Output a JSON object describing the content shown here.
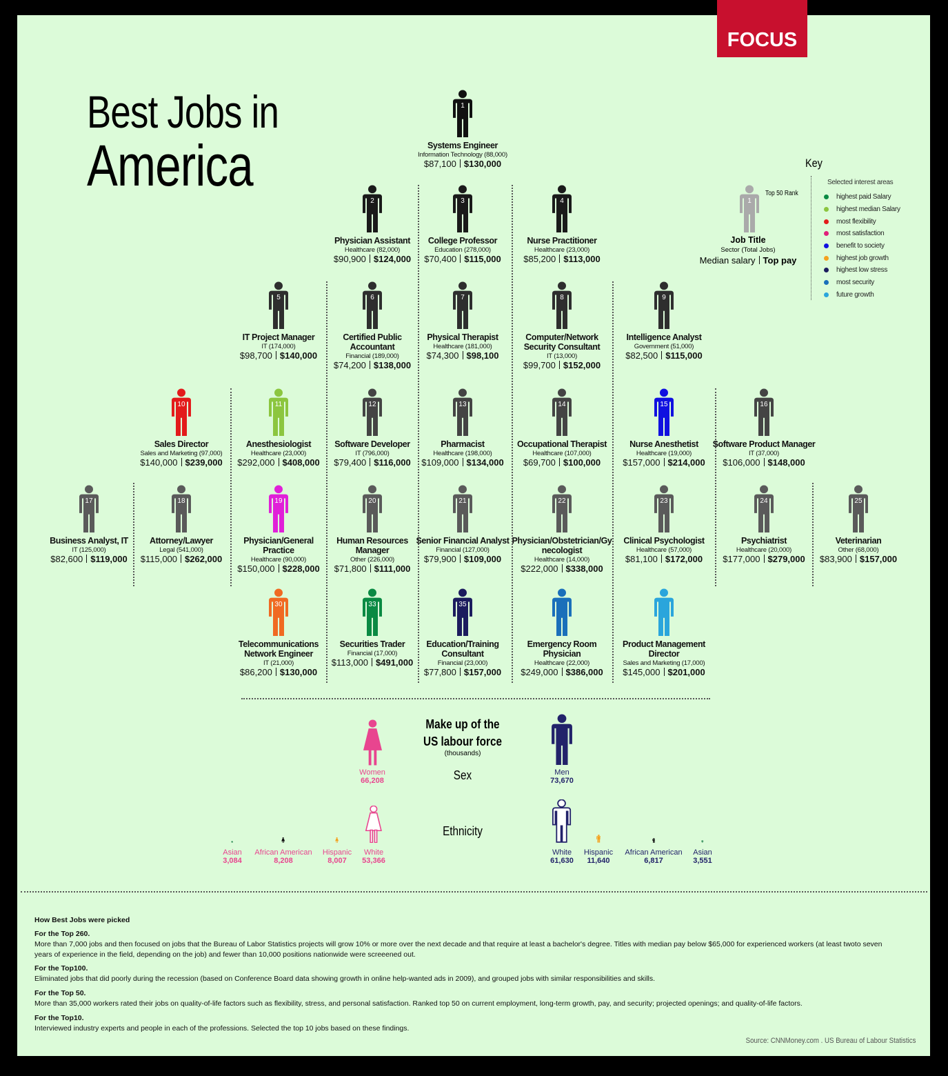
{
  "header": {
    "logo": "FOCUS",
    "title_lines": [
      "Best Jobs in",
      "America"
    ]
  },
  "key": {
    "title": "Key",
    "sample_rank": "1",
    "rank_note": "Top 50 Rank",
    "job_title": "Job Title",
    "sector": "Sector (Total Jobs)",
    "median": "Median salary",
    "top_pay": "Top pay",
    "areas_title": "Selected interest areas",
    "areas": [
      {
        "label": "highest paid Salary",
        "color": "#0a8a43"
      },
      {
        "label": "highest median Salary",
        "color": "#8cc63f"
      },
      {
        "label": "most flexibility",
        "color": "#e31b1b"
      },
      {
        "label": "most satisfaction",
        "color": "#e0207a"
      },
      {
        "label": "benefit to society",
        "color": "#1010e0"
      },
      {
        "label": "highest job growth",
        "color": "#f4a11f"
      },
      {
        "label": "highest low stress",
        "color": "#1c1c5e"
      },
      {
        "label": "most security",
        "color": "#1a6fba"
      },
      {
        "label": "future growth",
        "color": "#2aa5dc"
      }
    ]
  },
  "jobs": [
    {
      "rank": "1",
      "title": "Systems Engineer",
      "sector": "Information Technology (88,000)",
      "median": "$87,100",
      "top_pay": "$130,000",
      "color": "#111111"
    },
    {
      "rank": "2",
      "title": "Physician Assistant",
      "sector": "Healthcare (82,000)",
      "median": "$90,900",
      "top_pay": "$124,000",
      "color": "#1a1a1a"
    },
    {
      "rank": "3",
      "title": "College Professor",
      "sector": "Education (278,000)",
      "median": "$70,400",
      "top_pay": "$115,000",
      "color": "#1a1a1a"
    },
    {
      "rank": "4",
      "title": "Nurse Practitioner",
      "sector": "Healthcare (23,000)",
      "median": "$85,200",
      "top_pay": "$113,000",
      "color": "#1a1a1a"
    },
    {
      "rank": "5",
      "title": "IT Project Manager",
      "sector": "IT (174,000)",
      "median": "$98,700",
      "top_pay": "$140,000",
      "color": "#2e2e2e"
    },
    {
      "rank": "6",
      "title": "Certified Public Accountant",
      "sector": "Financial (189,000)",
      "median": "$74,200",
      "top_pay": "$138,000",
      "color": "#2e2e2e"
    },
    {
      "rank": "7",
      "title": "Physical Therapist",
      "sector": "Healthcare (181,000)",
      "median": "$74,300",
      "top_pay": "$98,100",
      "color": "#2e2e2e"
    },
    {
      "rank": "8",
      "title": "Computer/Network Security Consultant",
      "sector": "IT (13,000)",
      "median": "$99,700",
      "top_pay": "$152,000",
      "color": "#2e2e2e"
    },
    {
      "rank": "9",
      "title": "Intelligence Analyst",
      "sector": "Government (51,000)",
      "median": "$82,500",
      "top_pay": "$115,000",
      "color": "#2e2e2e"
    },
    {
      "rank": "10",
      "title": "Sales Director",
      "sector": "Sales and Marketing (97,000)",
      "median": "$140,000",
      "top_pay": "$239,000",
      "color": "#e31b1b"
    },
    {
      "rank": "11",
      "title": "Anesthesiologist",
      "sector": "Healthcare (23,000)",
      "median": "$292,000",
      "top_pay": "$408,000",
      "color": "#8cc63f"
    },
    {
      "rank": "12",
      "title": "Software Developer",
      "sector": "IT (796,000)",
      "median": "$79,400",
      "top_pay": "$116,000",
      "color": "#444444"
    },
    {
      "rank": "13",
      "title": "Pharmacist",
      "sector": "Healthcare (198,000)",
      "median": "$109,000",
      "top_pay": "$134,000",
      "color": "#444444"
    },
    {
      "rank": "14",
      "title": "Occupational Therapist",
      "sector": "Healthcare (107,000)",
      "median": "$69,700",
      "top_pay": "$100,000",
      "color": "#444444"
    },
    {
      "rank": "15",
      "title": "Nurse Anesthetist",
      "sector": "Healthcare (19,000)",
      "median": "$157,000",
      "top_pay": "$214,000",
      "color": "#1010e0"
    },
    {
      "rank": "16",
      "title": "Software Product Manager",
      "sector": "IT (37,000)",
      "median": "$106,000",
      "top_pay": "$148,000",
      "color": "#444444"
    },
    {
      "rank": "17",
      "title": "Business Analyst, IT",
      "sector": "IT (125,000)",
      "median": "$82,600",
      "top_pay": "$119,000",
      "color": "#5a5a5a"
    },
    {
      "rank": "18",
      "title": "Attorney/Lawyer",
      "sector": "Legal (541,000)",
      "median": "$115,000",
      "top_pay": "$262,000",
      "color": "#5a5a5a"
    },
    {
      "rank": "19",
      "title": "Physician/General Practice",
      "sector": "Healthcare (90,000)",
      "median": "$150,000",
      "top_pay": "$228,000",
      "color": "#e020d8"
    },
    {
      "rank": "20",
      "title": "Human Resources Manager",
      "sector": "Other (226,000)",
      "median": "$71,800",
      "top_pay": "$111,000",
      "color": "#5a5a5a"
    },
    {
      "rank": "21",
      "title": "Senior Financial Analyst",
      "sector": "Financial (127,000)",
      "median": "$79,900",
      "top_pay": "$109,000",
      "color": "#5a5a5a"
    },
    {
      "rank": "22",
      "title": "Physician/Obstetrician/Gynecologist",
      "sector": "Healthcare (14,000)",
      "median": "$222,000",
      "top_pay": "$338,000",
      "color": "#5a5a5a"
    },
    {
      "rank": "23",
      "title": "Clinical Psychologist",
      "sector": "Healthcare (57,000)",
      "median": "$81,100",
      "top_pay": "$172,000",
      "color": "#5a5a5a"
    },
    {
      "rank": "24",
      "title": "Psychiatrist",
      "sector": "Healthcare (20,000)",
      "median": "$177,000",
      "top_pay": "$279,000",
      "color": "#5a5a5a"
    },
    {
      "rank": "25",
      "title": "Veterinarian",
      "sector": "Other (68,000)",
      "median": "$83,900",
      "top_pay": "$157,000",
      "color": "#5a5a5a"
    },
    {
      "rank": "30",
      "title": "Telecommunications Network Engineer",
      "sector": "IT (21,000)",
      "median": "$86,200",
      "top_pay": "$130,000",
      "color": "#f06a22"
    },
    {
      "rank": "33",
      "title": "Securities Trader",
      "sector": "Financial (17,000)",
      "median": "$113,000",
      "top_pay": "$491,000",
      "color": "#0a8a43"
    },
    {
      "rank": "35",
      "title": "Education/Training Consultant",
      "sector": "Financial (23,000)",
      "median": "$77,800",
      "top_pay": "$157,000",
      "color": "#1c1c5e"
    },
    {
      "rank": null,
      "title": "Emergency Room Physician",
      "sector": "Healthcare (22,000)",
      "median": "$249,000",
      "top_pay": "$386,000",
      "color": "#1a6fba"
    },
    {
      "rank": null,
      "title": "Product Management Director",
      "sector": "Sales and Marketing (17,000)",
      "median": "$145,000",
      "top_pay": "$201,000",
      "color": "#2aa5dc"
    }
  ],
  "labour_force": {
    "title_lines": [
      "Make up of the",
      "US labour force"
    ],
    "note": "(thousands)",
    "sex_label": "Sex",
    "ethnicity_label": "Ethnicity",
    "women": {
      "label": "Women",
      "value": 66208,
      "value_label": "66,208",
      "color": "#e8458f"
    },
    "men": {
      "label": "Men",
      "value": 73670,
      "value_label": "73,670",
      "color": "#22226a"
    },
    "ethnicity_women": [
      {
        "label": "Asian",
        "value": 3084,
        "value_label": "3,084",
        "color": "#2e8b57"
      },
      {
        "label": "African American",
        "value": 8208,
        "value_label": "8,208",
        "color": "#111111"
      },
      {
        "label": "Hispanic",
        "value": 8007,
        "value_label": "8,007",
        "color": "#f4a11f"
      },
      {
        "label": "White",
        "value": 53366,
        "value_label": "53,366",
        "color": "#ffffff"
      }
    ],
    "ethnicity_men": [
      {
        "label": "White",
        "value": 61630,
        "value_label": "61,630",
        "color": "#ffffff"
      },
      {
        "label": "Hispanic",
        "value": 11640,
        "value_label": "11,640",
        "color": "#f4a11f"
      },
      {
        "label": "African American",
        "value": 6817,
        "value_label": "6,817",
        "color": "#111111"
      },
      {
        "label": "Asian",
        "value": 3551,
        "value_label": "3,551",
        "color": "#2e8b57"
      }
    ]
  },
  "method": {
    "title": "How Best Jobs were picked",
    "sections": [
      {
        "heading": "For the Top 260.",
        "text": "More than 7,000 jobs and then focused on jobs that the Bureau of Labor Statistics projects will grow 10% or more over the next decade and that require at least a bachelor's degree. Titles with median pay below $65,000 for experienced workers (at least twoto seven years of experience in the field, depending on the job) and fewer than 10,000 positions nationwide were screeened out."
      },
      {
        "heading": "For the Top100.",
        "text": "Eliminated jobs that did poorly during the recession (based on Conference Board data showing growth in online help-wanted ads in 2009), and grouped jobs with similar responsibilities and skills."
      },
      {
        "heading": "For the Top 50.",
        "text": "More than 35,000 workers rated their jobs on quality-of-life factors such as flexibility, stress, and personal satisfaction. Ranked top 50 on current employment, long-term growth, pay, and security; projected openings; and quality-of-life factors."
      },
      {
        "heading": "For the Top10.",
        "text": "Interviewed industry experts and people in each of the professions.  Selected the top 10 jobs based on these findings."
      }
    ],
    "source": "Source: CNNMoney.com . US Bureau of Labour Statistics"
  }
}
